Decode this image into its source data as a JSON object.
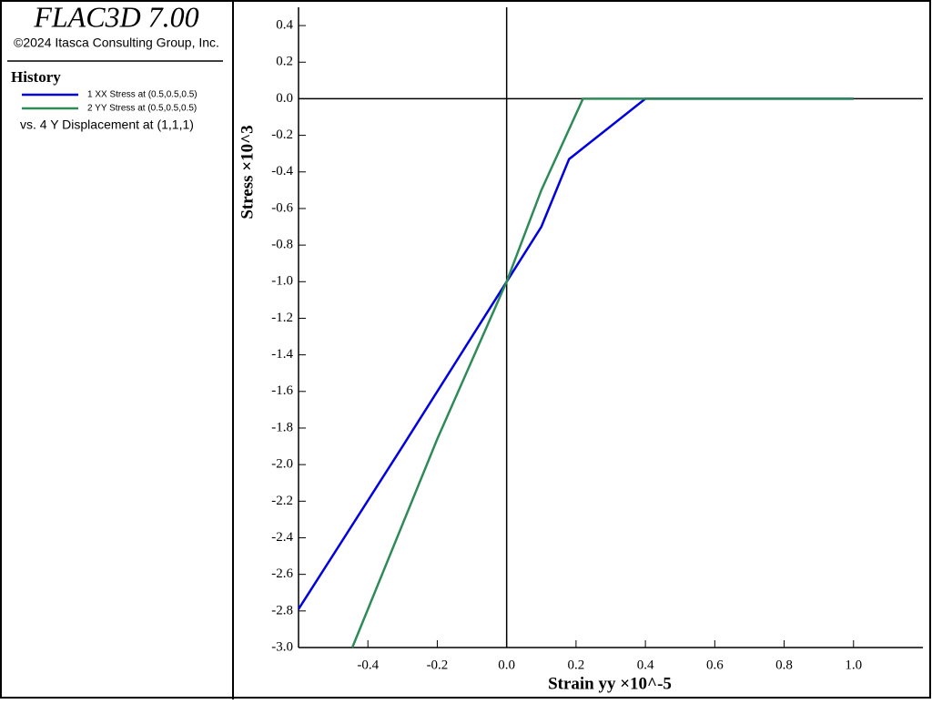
{
  "header": {
    "title": "FLAC3D 7.00",
    "copyright": "©2024 Itasca Consulting Group, Inc.",
    "section": "History",
    "vs_label": "vs. 4 Y Displacement at (1,1,1)"
  },
  "chart_data": {
    "type": "line",
    "x_label": "Strain yy ×10^-5",
    "y_label": "Stress ×10^3",
    "xlim": [
      -0.6,
      1.2
    ],
    "ylim": [
      -3.0,
      0.5
    ],
    "xticks": [
      -0.4,
      -0.2,
      {
        "value": 0,
        "label": "0.0"
      },
      0.2,
      0.4,
      0.6,
      0.8,
      {
        "value": 1,
        "label": "1.0"
      }
    ],
    "yticks": [
      0.4,
      0.2,
      {
        "value": 0,
        "label": "0.0"
      },
      -0.2,
      -0.4,
      -0.6,
      -0.8,
      {
        "value": -1,
        "label": "-1.0"
      },
      -1.2,
      -1.4,
      -1.6,
      -1.8,
      {
        "value": -2,
        "label": "-2.0"
      },
      -2.2,
      -2.4,
      -2.6,
      -2.8,
      {
        "value": -3,
        "label": "-3.0"
      }
    ],
    "series": [
      {
        "name": "1 XX Stress at (0.5,0.5,0.5)",
        "color": "#0000e0",
        "x": [
          -0.6,
          -0.3,
          0,
          0.1,
          0.18,
          0.4,
          1.0
        ],
        "values": [
          -2.79,
          -1.9,
          -1.0,
          -0.7,
          -0.33,
          0,
          0
        ]
      },
      {
        "name": "2 YY Stress at (0.5,0.5,0.5)",
        "color": "#2e8b57",
        "x": [
          -0.445,
          -0.2,
          0,
          0.1,
          0.22,
          1.0
        ],
        "values": [
          -3.0,
          -1.86,
          -1.0,
          -0.5,
          0,
          0
        ]
      }
    ]
  }
}
